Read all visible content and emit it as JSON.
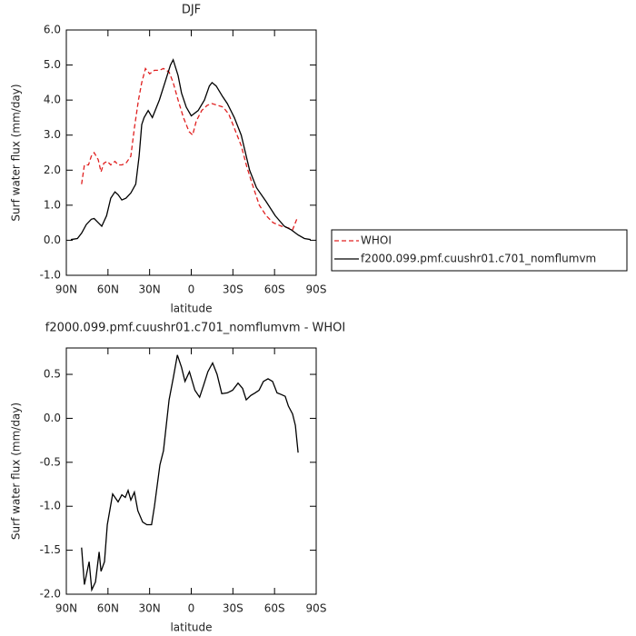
{
  "chart_data": [
    {
      "type": "line",
      "title": "DJF",
      "ylabel": "Surf water flux (mm/day)",
      "xlabel": "latitude",
      "xlim": [
        90,
        -90
      ],
      "xticks": [
        {
          "value": 90,
          "label": "90N"
        },
        {
          "value": 60,
          "label": "60N"
        },
        {
          "value": 30,
          "label": "30N"
        },
        0,
        {
          "value": -30,
          "label": "30S"
        },
        {
          "value": -60,
          "label": "60S"
        },
        {
          "value": -90,
          "label": "90S"
        }
      ],
      "ylim": [
        -1,
        6
      ],
      "yticks": [
        {
          "value": 6,
          "label": "6.0"
        },
        {
          "value": 5,
          "label": "5.0"
        },
        {
          "value": 4,
          "label": "4.0"
        },
        {
          "value": 3,
          "label": "3.0"
        },
        {
          "value": 2,
          "label": "2.0"
        },
        {
          "value": 1,
          "label": "1.0"
        },
        {
          "value": 0,
          "label": "0.0"
        },
        {
          "value": -1,
          "label": "-1.0"
        }
      ],
      "legend": "right",
      "series": [
        {
          "name": "WHOI",
          "color": "#e02020",
          "dash": "dashed",
          "x": [
            79,
            77,
            74,
            72,
            70,
            67,
            65,
            63,
            60.5,
            58,
            55,
            52.7,
            50,
            47,
            43.5,
            41,
            38,
            35.7,
            33,
            30,
            26.5,
            23,
            20,
            16,
            13,
            9.5,
            5.6,
            1.6,
            -1,
            -3.6,
            -7.5,
            -11.5,
            -15,
            -19,
            -23,
            -27,
            -31,
            -36,
            -40,
            -44,
            -49,
            -54,
            -59,
            -65,
            -70,
            -73,
            -76
          ],
          "values": [
            1.6,
            2.15,
            2.15,
            2.4,
            2.5,
            2.3,
            1.95,
            2.2,
            2.25,
            2.15,
            2.25,
            2.15,
            2.15,
            2.2,
            2.4,
            3.2,
            4.0,
            4.5,
            4.9,
            4.75,
            4.85,
            4.85,
            4.9,
            4.8,
            4.5,
            4.0,
            3.5,
            3.1,
            3.0,
            3.4,
            3.7,
            3.85,
            3.9,
            3.85,
            3.8,
            3.6,
            3.2,
            2.7,
            2.1,
            1.6,
            1.0,
            0.7,
            0.5,
            0.4,
            0.35,
            0.3,
            0.6
          ]
        },
        {
          "name": "f2000.099.pmf.cuushr01.c701_nomflumvm",
          "color": "#000000",
          "dash": "solid",
          "x": [
            86.7,
            82,
            79,
            75.6,
            72,
            70,
            67,
            64.5,
            61,
            58,
            55,
            52.7,
            50,
            47,
            43.5,
            40,
            37.6,
            35.7,
            34,
            31,
            28,
            23,
            19,
            15,
            13,
            9.5,
            7,
            3.6,
            0,
            -5,
            -9.5,
            -13,
            -15,
            -18,
            -22.6,
            -26,
            -31,
            -36,
            -42,
            -47,
            -54,
            -60.5,
            -67,
            -72,
            -77,
            -81.5,
            -86
          ],
          "values": [
            0.02,
            0.05,
            0.2,
            0.45,
            0.6,
            0.62,
            0.5,
            0.4,
            0.7,
            1.2,
            1.38,
            1.3,
            1.15,
            1.2,
            1.35,
            1.6,
            2.4,
            3.3,
            3.5,
            3.7,
            3.5,
            4.0,
            4.5,
            5.0,
            5.15,
            4.7,
            4.2,
            3.8,
            3.55,
            3.7,
            4.0,
            4.4,
            4.5,
            4.4,
            4.1,
            3.9,
            3.5,
            3.0,
            2.0,
            1.5,
            1.1,
            0.7,
            0.4,
            0.3,
            0.15,
            0.05,
            0.02
          ]
        }
      ]
    },
    {
      "type": "line",
      "title": "f2000.099.pmf.cuushr01.c701_nomflumvm - WHOI",
      "ylabel": "Surf water flux (mm/day)",
      "xlabel": "latitude",
      "xlim": [
        90,
        -90
      ],
      "xticks": [
        {
          "value": 90,
          "label": "90N"
        },
        {
          "value": 60,
          "label": "60N"
        },
        {
          "value": 30,
          "label": "30N"
        },
        0,
        {
          "value": -30,
          "label": "30S"
        },
        {
          "value": -60,
          "label": "60S"
        },
        {
          "value": -90,
          "label": "90S"
        }
      ],
      "ylim": [
        -2,
        0.8
      ],
      "yticks": [
        0.5,
        {
          "value": 0,
          "label": "0.0"
        },
        -0.5,
        {
          "value": -1,
          "label": "-1.0"
        },
        -1.5,
        {
          "value": -2,
          "label": "-2.0"
        }
      ],
      "series": [
        {
          "color": "#000000",
          "dash": "solid",
          "x": [
            79,
            77,
            73.6,
            71.7,
            69,
            66.4,
            65,
            62.5,
            60.5,
            56.6,
            52.7,
            50,
            47.5,
            45.5,
            43.5,
            41,
            38.5,
            35,
            32,
            28.6,
            26.5,
            22.6,
            20,
            16,
            12.8,
            10,
            7,
            4.5,
            1.3,
            -2.6,
            -6,
            -8.8,
            -12,
            -15.4,
            -18.6,
            -22,
            -26,
            -29.8,
            -33.7,
            -37,
            -39.6,
            -42.9,
            -46,
            -48.8,
            -52,
            -55.3,
            -58.6,
            -61.8,
            -65,
            -67.7,
            -70,
            -73,
            -75,
            -77
          ],
          "values": [
            -1.47,
            -1.89,
            -1.63,
            -1.95,
            -1.86,
            -1.52,
            -1.74,
            -1.63,
            -1.21,
            -0.86,
            -0.95,
            -0.87,
            -0.9,
            -0.82,
            -0.93,
            -0.84,
            -1.05,
            -1.18,
            -1.21,
            -1.21,
            -1.0,
            -0.53,
            -0.37,
            0.21,
            0.47,
            0.72,
            0.58,
            0.42,
            0.53,
            0.32,
            0.24,
            0.37,
            0.53,
            0.63,
            0.5,
            0.28,
            0.29,
            0.32,
            0.4,
            0.34,
            0.21,
            0.26,
            0.29,
            0.32,
            0.42,
            0.45,
            0.42,
            0.29,
            0.27,
            0.25,
            0.14,
            0.05,
            -0.08,
            -0.39
          ]
        }
      ]
    }
  ]
}
